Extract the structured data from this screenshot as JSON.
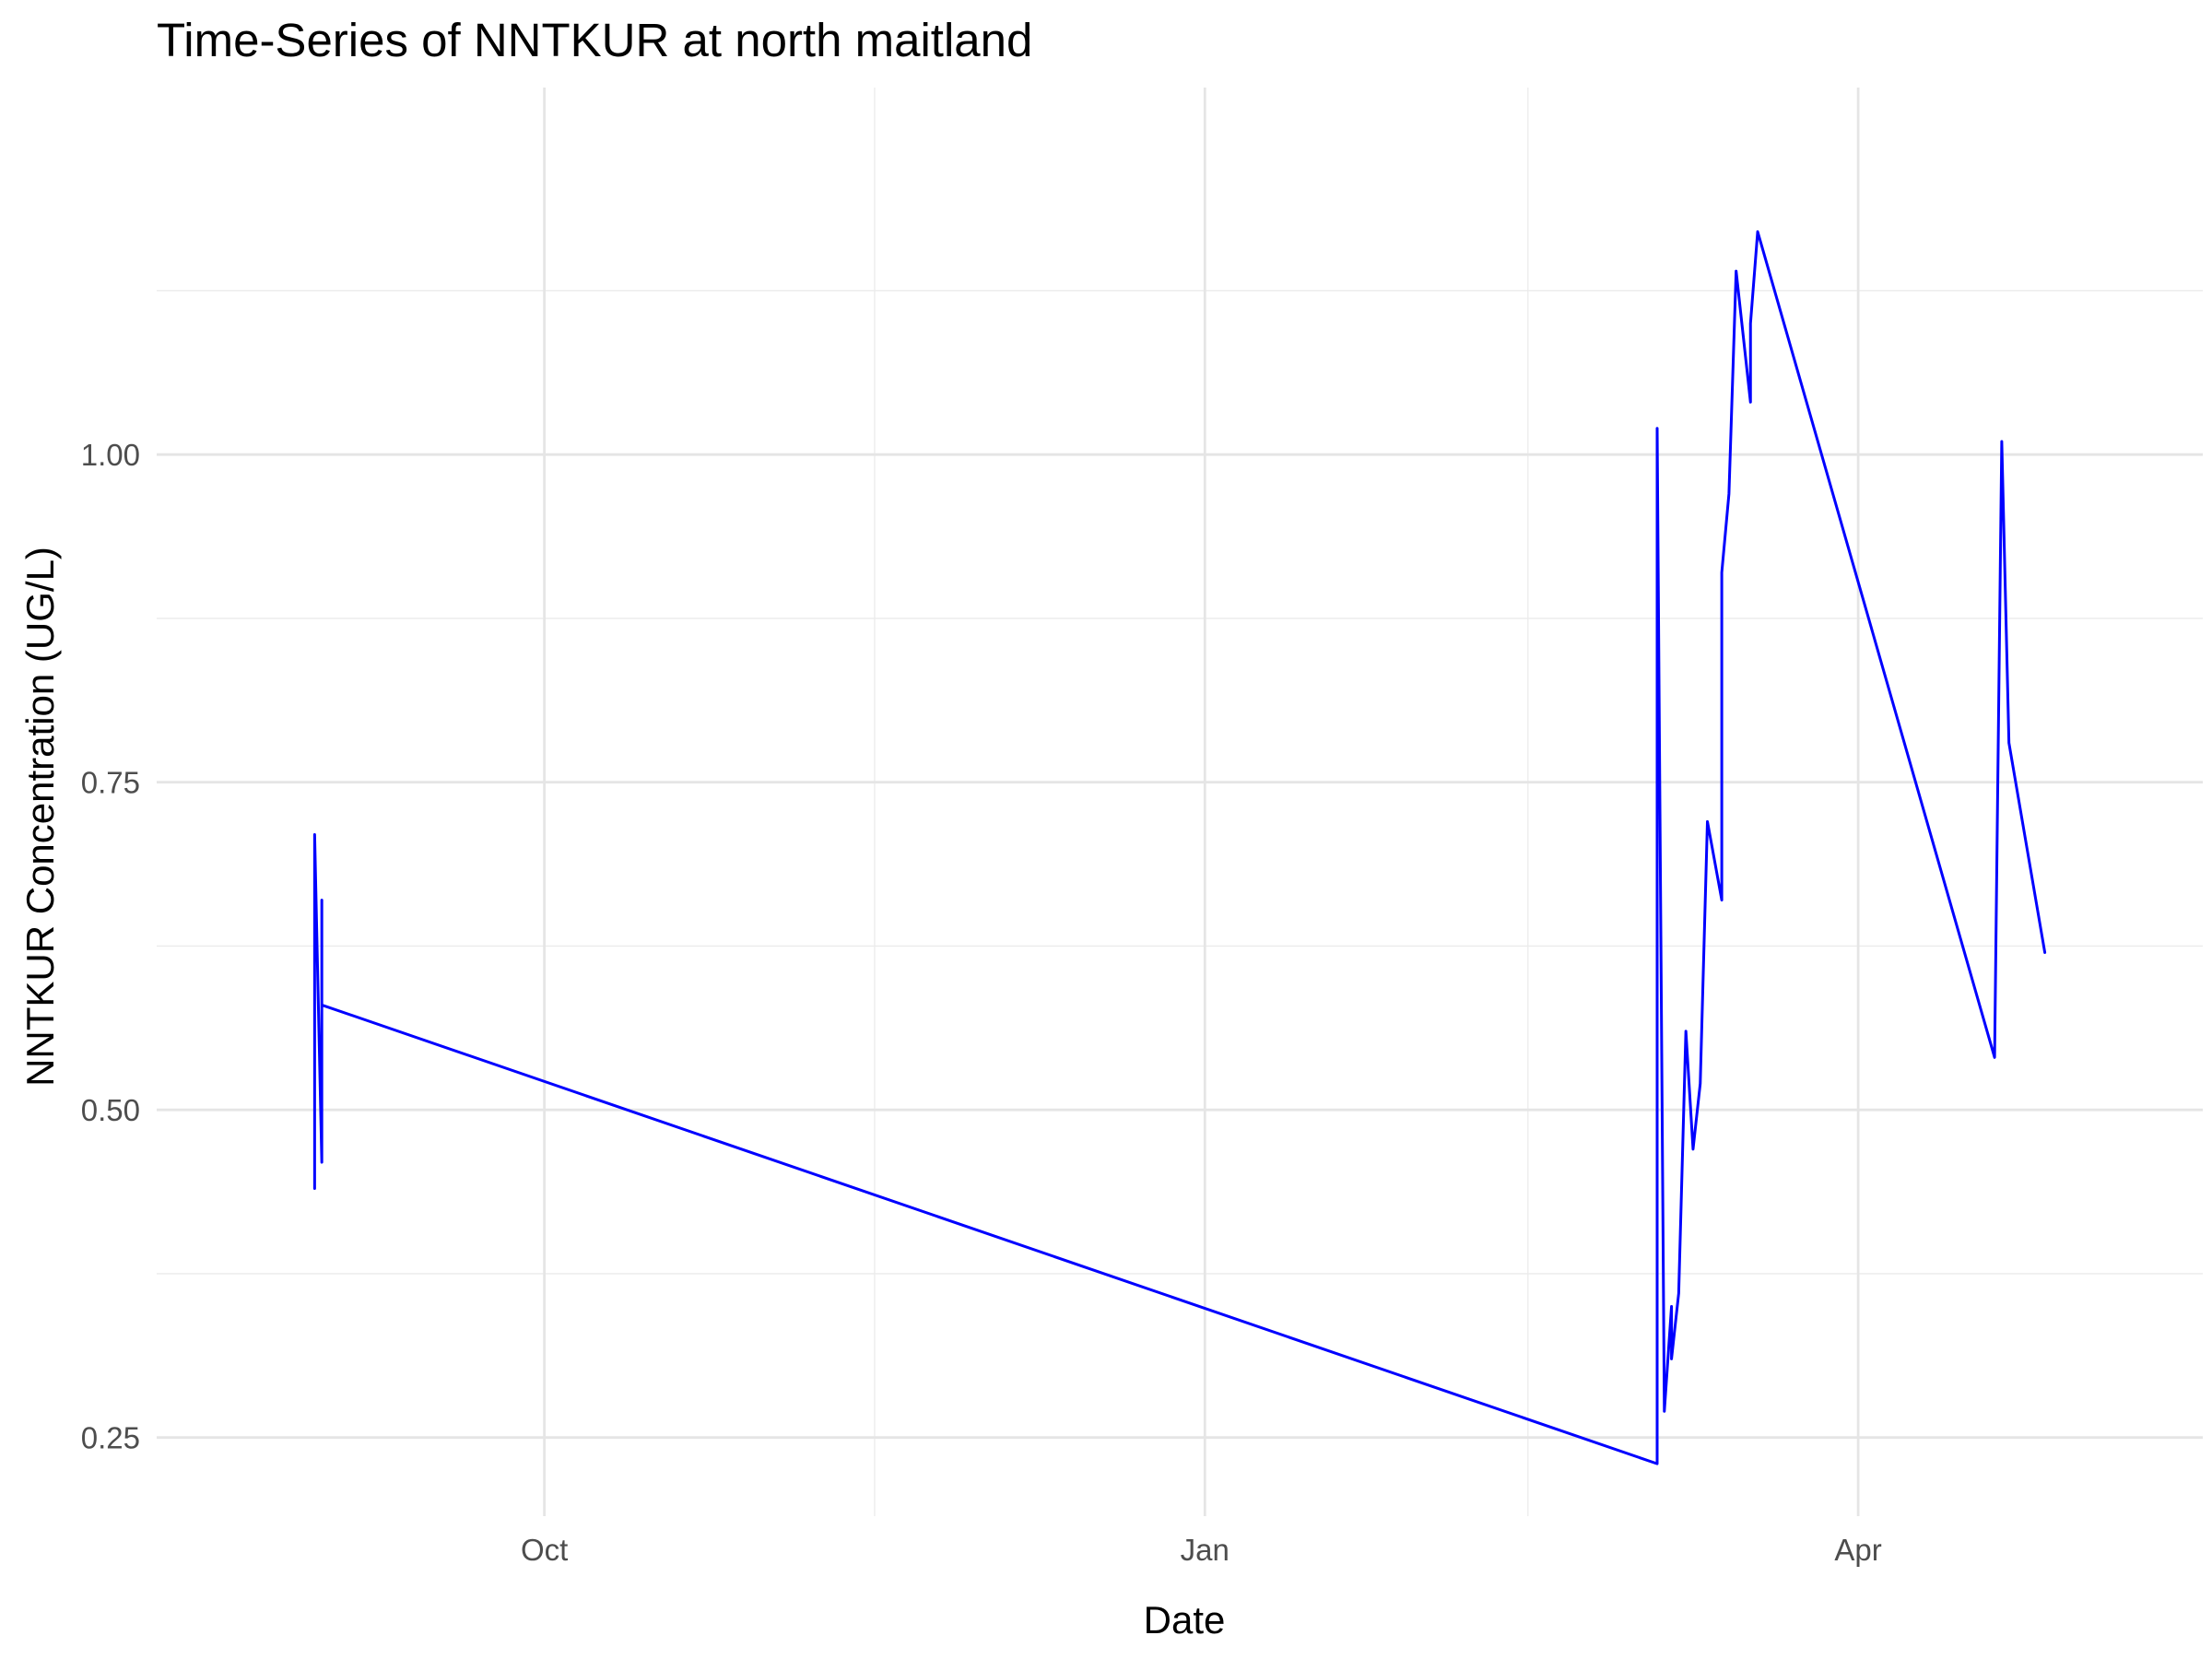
{
  "chart_data": {
    "type": "line",
    "title": "Time-Series of NNTKUR at north maitland",
    "xlabel": "Date",
    "ylabel": "NNTKUR Concentration (UG/L)",
    "x_type": "date",
    "xlim": [
      "2023-08-08",
      "2024-05-19"
    ],
    "ylim": [
      0.19,
      1.28
    ],
    "x_ticks": [
      {
        "date": "2023-10-01",
        "label": "Oct"
      },
      {
        "date": "2024-01-01",
        "label": "Jan"
      },
      {
        "date": "2024-04-01",
        "label": "Apr"
      }
    ],
    "x_minor_ticks": [
      "2023-11-16",
      "2024-02-15"
    ],
    "y_ticks": [
      {
        "value": 0.25,
        "label": "0.25"
      },
      {
        "value": 0.5,
        "label": "0.50"
      },
      {
        "value": 0.75,
        "label": "0.75"
      },
      {
        "value": 1.0,
        "label": "1.00"
      }
    ],
    "y_minor_ticks": [
      0.375,
      0.625,
      0.875,
      1.125
    ],
    "grid": true,
    "line_color": "#0000ff",
    "series": [
      {
        "points": [
          {
            "x": "2023-08-30",
            "y": 0.44
          },
          {
            "x": "2023-08-30",
            "y": 0.71
          },
          {
            "x": "2023-08-31",
            "y": 0.46
          },
          {
            "x": "2023-08-31",
            "y": 0.66
          },
          {
            "x": "2023-08-31",
            "y": 0.58
          },
          {
            "x": "2024-03-04",
            "y": 0.23
          },
          {
            "x": "2024-03-04",
            "y": 1.02
          },
          {
            "x": "2024-03-05",
            "y": 0.27
          },
          {
            "x": "2024-03-06",
            "y": 0.35
          },
          {
            "x": "2024-03-06",
            "y": 0.31
          },
          {
            "x": "2024-03-07",
            "y": 0.36
          },
          {
            "x": "2024-03-08",
            "y": 0.56
          },
          {
            "x": "2024-03-09",
            "y": 0.47
          },
          {
            "x": "2024-03-10",
            "y": 0.52
          },
          {
            "x": "2024-03-11",
            "y": 0.72
          },
          {
            "x": "2024-03-13",
            "y": 0.66
          },
          {
            "x": "2024-03-13",
            "y": 0.91
          },
          {
            "x": "2024-03-14",
            "y": 0.97
          },
          {
            "x": "2024-03-15",
            "y": 1.14
          },
          {
            "x": "2024-03-16",
            "y": 1.09
          },
          {
            "x": "2024-03-17",
            "y": 1.04
          },
          {
            "x": "2024-03-17",
            "y": 1.1
          },
          {
            "x": "2024-03-18",
            "y": 1.17
          },
          {
            "x": "2024-04-20",
            "y": 0.54
          },
          {
            "x": "2024-04-21",
            "y": 1.01
          },
          {
            "x": "2024-04-22",
            "y": 0.78
          },
          {
            "x": "2024-04-27",
            "y": 0.62
          }
        ]
      }
    ]
  }
}
